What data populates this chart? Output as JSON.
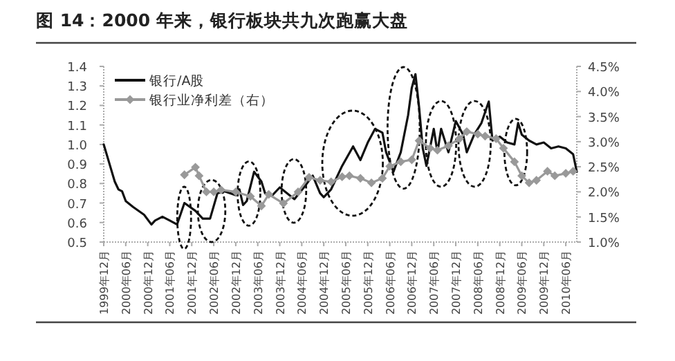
{
  "chart_data": {
    "type": "line",
    "title": "图 14：2000 年来，银行板块共九次跑赢大盘",
    "xlim": [
      "1999-12",
      "2010-09"
    ],
    "xticks": [
      {
        "value": "1999-12",
        "label": "1999年12月"
      },
      {
        "value": "2000-06",
        "label": "2000年06月"
      },
      {
        "value": "2000-12",
        "label": "2000年12月"
      },
      {
        "value": "2001-06",
        "label": "2001年06月"
      },
      {
        "value": "2001-12",
        "label": "2001年12月"
      },
      {
        "value": "2002-06",
        "label": "2002年06月"
      },
      {
        "value": "2002-12",
        "label": "2002年12月"
      },
      {
        "value": "2003-06",
        "label": "2003年06月"
      },
      {
        "value": "2003-12",
        "label": "2003年12月"
      },
      {
        "value": "2004-06",
        "label": "2004年06月"
      },
      {
        "value": "2004-12",
        "label": "2004年12月"
      },
      {
        "value": "2005-06",
        "label": "2005年06月"
      },
      {
        "value": "2005-12",
        "label": "2005年12月"
      },
      {
        "value": "2006-06",
        "label": "2006年06月"
      },
      {
        "value": "2006-12",
        "label": "2006年12月"
      },
      {
        "value": "2007-06",
        "label": "2007年06月"
      },
      {
        "value": "2007-12",
        "label": "2007年12月"
      },
      {
        "value": "2008-06",
        "label": "2008年06月"
      },
      {
        "value": "2008-12",
        "label": "2008年12月"
      },
      {
        "value": "2009-06",
        "label": "2009年06月"
      },
      {
        "value": "2009-12",
        "label": "2009年12月"
      },
      {
        "value": "2010-06",
        "label": "2010年06月"
      }
    ],
    "ylim": [
      0.5,
      1.4
    ],
    "yticks": [
      {
        "value": 0.5,
        "label": "0.5"
      },
      {
        "value": 0.6,
        "label": "0.6"
      },
      {
        "value": 0.7,
        "label": "0.7"
      },
      {
        "value": 0.8,
        "label": "0.8"
      },
      {
        "value": 0.9,
        "label": "0.9"
      },
      {
        "value": 1,
        "label": "1.0"
      },
      {
        "value": 1.1,
        "label": "1.1"
      },
      {
        "value": 1.2,
        "label": "1.2"
      },
      {
        "value": 1.3,
        "label": "1.3"
      },
      {
        "value": 1.4,
        "label": "1.4"
      }
    ],
    "y2lim": [
      1,
      4.5
    ],
    "y2ticks": [
      {
        "value": 1,
        "label": "1.0%"
      },
      {
        "value": 1.5,
        "label": "1.5%"
      },
      {
        "value": 2,
        "label": "2.0%"
      },
      {
        "value": 2.5,
        "label": "2.5%"
      },
      {
        "value": 3,
        "label": "3.0%"
      },
      {
        "value": 3.5,
        "label": "3.5%"
      },
      {
        "value": 4,
        "label": "4.0%"
      },
      {
        "value": 4.5,
        "label": "4.5%"
      }
    ],
    "legend": "top left",
    "grid": false,
    "series": [
      {
        "name": "银行/A股",
        "color": "#111111",
        "marker": "none",
        "x": [
          "1999-12",
          "2000-03",
          "2000-04",
          "2000-05",
          "2000-06",
          "2000-08",
          "2000-11",
          "2001-01",
          "2001-02",
          "2001-04",
          "2001-06",
          "2001-08",
          "2001-10",
          "2002-01",
          "2002-03",
          "2002-05",
          "2002-07",
          "2002-09",
          "2002-12",
          "2003-01",
          "2003-02",
          "2003-03",
          "2003-05",
          "2003-07",
          "2003-08",
          "2003-10",
          "2003-12",
          "2004-04",
          "2004-07",
          "2004-09",
          "2004-11",
          "2004-12",
          "2005-02",
          "2005-05",
          "2005-08",
          "2005-10",
          "2005-12",
          "2006-02",
          "2006-04",
          "2006-05",
          "2006-06",
          "2006-07",
          "2006-09",
          "2006-11",
          "2006-12",
          "2007-01",
          "2007-02",
          "2007-03",
          "2007-04",
          "2007-06",
          "2007-07",
          "2007-08",
          "2007-10",
          "2007-12",
          "2008-02",
          "2008-03",
          "2008-05",
          "2008-07",
          "2008-09",
          "2008-10",
          "2008-12",
          "2009-02",
          "2009-04",
          "2009-05",
          "2009-06",
          "2009-08",
          "2009-10",
          "2009-12",
          "2010-02",
          "2010-04",
          "2010-06",
          "2010-08",
          "2010-09"
        ],
        "values": [
          1.0,
          0.81,
          0.77,
          0.76,
          0.71,
          0.68,
          0.64,
          0.59,
          0.61,
          0.63,
          0.61,
          0.59,
          0.7,
          0.66,
          0.62,
          0.62,
          0.75,
          0.76,
          0.74,
          0.77,
          0.69,
          0.71,
          0.86,
          0.81,
          0.75,
          0.74,
          0.78,
          0.72,
          0.79,
          0.84,
          0.75,
          0.73,
          0.77,
          0.89,
          0.99,
          0.92,
          1.01,
          1.08,
          1.06,
          0.96,
          0.91,
          0.86,
          0.96,
          1.15,
          1.29,
          1.36,
          1.19,
          0.98,
          0.89,
          1.08,
          0.96,
          1.08,
          0.96,
          1.12,
          1.05,
          0.96,
          1.05,
          1.11,
          1.22,
          1.02,
          1.04,
          1.01,
          1.0,
          1.11,
          1.05,
          1.02,
          1.0,
          1.01,
          0.98,
          0.99,
          0.98,
          0.95,
          0.86
        ]
      },
      {
        "name": "银行业净利差（右）",
        "color": "#999999",
        "marker": "diamond",
        "axis": "y2",
        "x": [
          "2001-10",
          "2002-01",
          "2002-02",
          "2002-04",
          "2002-06",
          "2002-08",
          "2002-12",
          "2003-04",
          "2003-07",
          "2003-09",
          "2004-01",
          "2004-05",
          "2004-08",
          "2004-11",
          "2005-02",
          "2005-05",
          "2005-07",
          "2005-10",
          "2006-01",
          "2006-04",
          "2006-06",
          "2006-09",
          "2006-12",
          "2007-02",
          "2007-05",
          "2007-07",
          "2007-10",
          "2008-01",
          "2008-03",
          "2008-06",
          "2008-08",
          "2008-11",
          "2009-01",
          "2009-04",
          "2009-06",
          "2009-08",
          "2009-10",
          "2010-01",
          "2010-03",
          "2010-06",
          "2010-08"
        ],
        "values": [
          2.34,
          2.49,
          2.32,
          2.0,
          2.0,
          2.04,
          2.0,
          1.91,
          1.72,
          1.95,
          1.77,
          2.0,
          2.29,
          2.23,
          2.2,
          2.3,
          2.32,
          2.27,
          2.18,
          2.27,
          2.51,
          2.6,
          2.64,
          3.02,
          2.87,
          2.83,
          2.92,
          3.06,
          3.2,
          3.15,
          3.11,
          3.06,
          2.87,
          2.6,
          2.32,
          2.18,
          2.23,
          2.41,
          2.32,
          2.37,
          2.41
        ]
      }
    ]
  }
}
